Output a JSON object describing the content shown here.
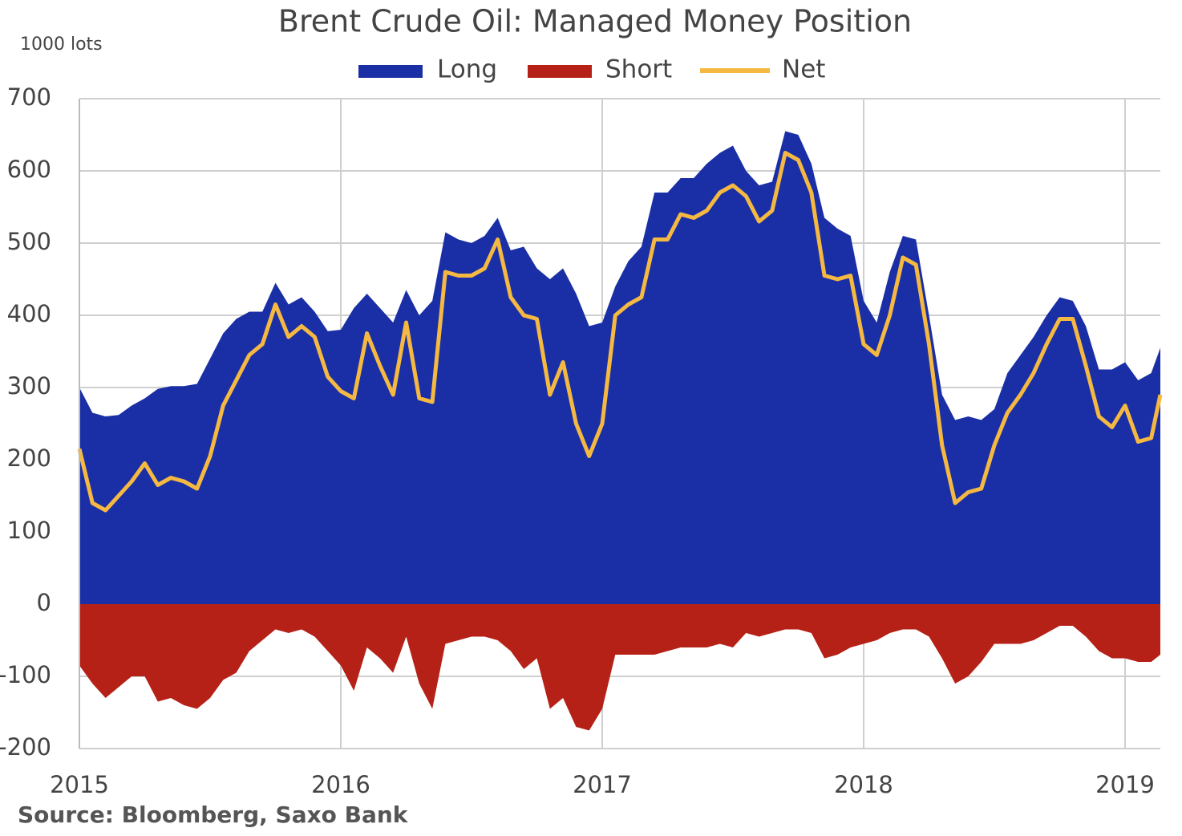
{
  "chart_data": {
    "type": "area",
    "title": "Brent Crude Oil: Managed Money Position",
    "ylabel": "1000 lots",
    "source": "Source: Bloomberg, Saxo Bank",
    "legend": "top",
    "grid": true,
    "xlim": [
      2015,
      2019.135
    ],
    "xticks": [
      2015,
      2016,
      2017,
      2018,
      2019
    ],
    "ylim": [
      -200,
      700
    ],
    "yticks": [
      -200,
      -100,
      0,
      100,
      200,
      300,
      400,
      500,
      600,
      700
    ],
    "x": [
      2015.0,
      2015.05,
      2015.1,
      2015.15,
      2015.2,
      2015.25,
      2015.3,
      2015.35,
      2015.4,
      2015.45,
      2015.5,
      2015.55,
      2015.6,
      2015.65,
      2015.7,
      2015.75,
      2015.8,
      2015.85,
      2015.9,
      2015.95,
      2016.0,
      2016.05,
      2016.1,
      2016.15,
      2016.2,
      2016.25,
      2016.3,
      2016.35,
      2016.4,
      2016.45,
      2016.5,
      2016.55,
      2016.6,
      2016.65,
      2016.7,
      2016.75,
      2016.8,
      2016.85,
      2016.9,
      2016.95,
      2017.0,
      2017.05,
      2017.1,
      2017.15,
      2017.2,
      2017.25,
      2017.3,
      2017.35,
      2017.4,
      2017.45,
      2017.5,
      2017.55,
      2017.6,
      2017.65,
      2017.7,
      2017.75,
      2017.8,
      2017.85,
      2017.9,
      2017.95,
      2018.0,
      2018.05,
      2018.1,
      2018.15,
      2018.2,
      2018.25,
      2018.3,
      2018.35,
      2018.4,
      2018.45,
      2018.5,
      2018.55,
      2018.6,
      2018.65,
      2018.7,
      2018.75,
      2018.8,
      2018.85,
      2018.9,
      2018.95,
      2019.0,
      2019.05,
      2019.1,
      2019.135
    ],
    "series": [
      {
        "name": "Long",
        "color": "#1a2fa5",
        "values": [
          300,
          265,
          260,
          262,
          275,
          285,
          298,
          302,
          302,
          305,
          340,
          375,
          395,
          405,
          405,
          445,
          415,
          425,
          405,
          378,
          380,
          410,
          430,
          410,
          390,
          435,
          400,
          420,
          515,
          505,
          500,
          510,
          535,
          490,
          495,
          465,
          450,
          465,
          430,
          385,
          390,
          440,
          475,
          495,
          570,
          570,
          590,
          590,
          610,
          625,
          635,
          600,
          580,
          585,
          655,
          650,
          610,
          535,
          520,
          510,
          420,
          390,
          460,
          510,
          505,
          400,
          290,
          255,
          260,
          255,
          270,
          320,
          345,
          370,
          400,
          425,
          420,
          385,
          325,
          325,
          335,
          310,
          320,
          355
        ]
      },
      {
        "name": "Short",
        "color": "#b52116",
        "values": [
          -85,
          -110,
          -130,
          -115,
          -100,
          -100,
          -135,
          -130,
          -140,
          -145,
          -130,
          -105,
          -95,
          -65,
          -50,
          -35,
          -40,
          -35,
          -45,
          -65,
          -85,
          -120,
          -60,
          -75,
          -95,
          -45,
          -110,
          -145,
          -55,
          -50,
          -45,
          -45,
          -50,
          -65,
          -90,
          -75,
          -145,
          -130,
          -170,
          -175,
          -145,
          -70,
          -70,
          -70,
          -70,
          -65,
          -60,
          -60,
          -60,
          -55,
          -60,
          -40,
          -45,
          -40,
          -35,
          -35,
          -40,
          -75,
          -70,
          -60,
          -55,
          -50,
          -40,
          -35,
          -35,
          -45,
          -75,
          -110,
          -100,
          -80,
          -55,
          -55,
          -55,
          -50,
          -40,
          -30,
          -30,
          -45,
          -65,
          -75,
          -75,
          -80,
          -80,
          -70
        ]
      },
      {
        "name": "Net",
        "color": "#f5b942",
        "values": [
          215,
          140,
          130,
          150,
          170,
          195,
          165,
          175,
          170,
          160,
          205,
          275,
          310,
          345,
          360,
          415,
          370,
          385,
          370,
          315,
          295,
          285,
          375,
          330,
          290,
          390,
          285,
          280,
          460,
          455,
          455,
          465,
          505,
          425,
          400,
          395,
          290,
          335,
          250,
          205,
          250,
          400,
          415,
          425,
          505,
          505,
          540,
          535,
          545,
          570,
          580,
          565,
          530,
          545,
          625,
          615,
          570,
          455,
          450,
          455,
          360,
          345,
          400,
          480,
          470,
          360,
          220,
          140,
          155,
          160,
          220,
          265,
          290,
          320,
          360,
          395,
          395,
          330,
          260,
          245,
          275,
          225,
          230,
          290
        ]
      }
    ]
  }
}
